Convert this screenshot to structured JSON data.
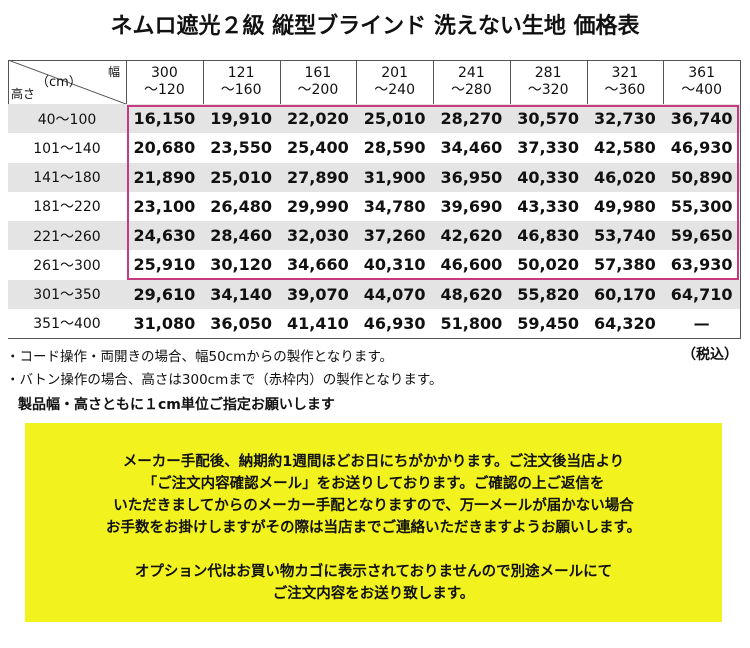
{
  "title": "ネムロ遮光２級 縦型ブラインド 洗えない生地 価格表",
  "table": {
    "corner": {
      "width_label": "幅",
      "unit": "（cm）",
      "height_label": "高さ"
    },
    "columns": [
      [
        "300",
        "～120"
      ],
      [
        "121",
        "～160"
      ],
      [
        "161",
        "～200"
      ],
      [
        "201",
        "～240"
      ],
      [
        "241",
        "～280"
      ],
      [
        "281",
        "～320"
      ],
      [
        "321",
        "～360"
      ],
      [
        "361",
        "～400"
      ]
    ],
    "rows": [
      {
        "label": "40～100",
        "prices": [
          "16,150",
          "19,910",
          "22,020",
          "25,010",
          "28,270",
          "30,570",
          "32,730",
          "36,740"
        ]
      },
      {
        "label": "101～140",
        "prices": [
          "20,680",
          "23,550",
          "25,400",
          "28,590",
          "34,460",
          "37,330",
          "42,580",
          "46,930"
        ]
      },
      {
        "label": "141～180",
        "prices": [
          "21,890",
          "25,010",
          "27,890",
          "31,900",
          "36,950",
          "40,330",
          "46,020",
          "50,890"
        ]
      },
      {
        "label": "181～220",
        "prices": [
          "23,100",
          "26,480",
          "29,990",
          "34,780",
          "39,690",
          "43,330",
          "49,980",
          "55,300"
        ]
      },
      {
        "label": "221～260",
        "prices": [
          "24,630",
          "28,460",
          "32,030",
          "37,260",
          "42,620",
          "46,830",
          "53,740",
          "59,650"
        ]
      },
      {
        "label": "261～300",
        "prices": [
          "25,910",
          "30,120",
          "34,660",
          "40,310",
          "46,600",
          "50,020",
          "57,380",
          "63,930"
        ]
      },
      {
        "label": "301～350",
        "prices": [
          "29,610",
          "34,140",
          "39,070",
          "44,070",
          "48,620",
          "55,820",
          "60,170",
          "64,710"
        ]
      },
      {
        "label": "351～400",
        "prices": [
          "31,080",
          "36,050",
          "41,410",
          "46,930",
          "51,800",
          "59,450",
          "64,320",
          "—"
        ]
      }
    ]
  },
  "notes": [
    "・コード操作・両開きの場合、幅50cmからの製作となります。",
    "・バトン操作の場合、高さは300cmまで（赤枠内）の製作となります。"
  ],
  "tax_note": "（税込）",
  "emphasis": "製品幅・高さともに１cm単位ご指定お願いします",
  "notice": [
    [
      "メーカー手配後、納期約1週間ほどお日にちがかかります。ご注文後当店より",
      "「ご注文内容確認メール」をお送りしております。ご確認の上ご返信を",
      "いただきましてからのメーカー手配となりますので、万一メールが届かない場合",
      "お手数をお掛けしますがその際は当店までご連絡いただきますようお願いします。"
    ],
    [
      "オプション代はお買い物カゴに表示されておりませんので別途メールにて",
      "ご注文内容をお送り致します。"
    ]
  ]
}
